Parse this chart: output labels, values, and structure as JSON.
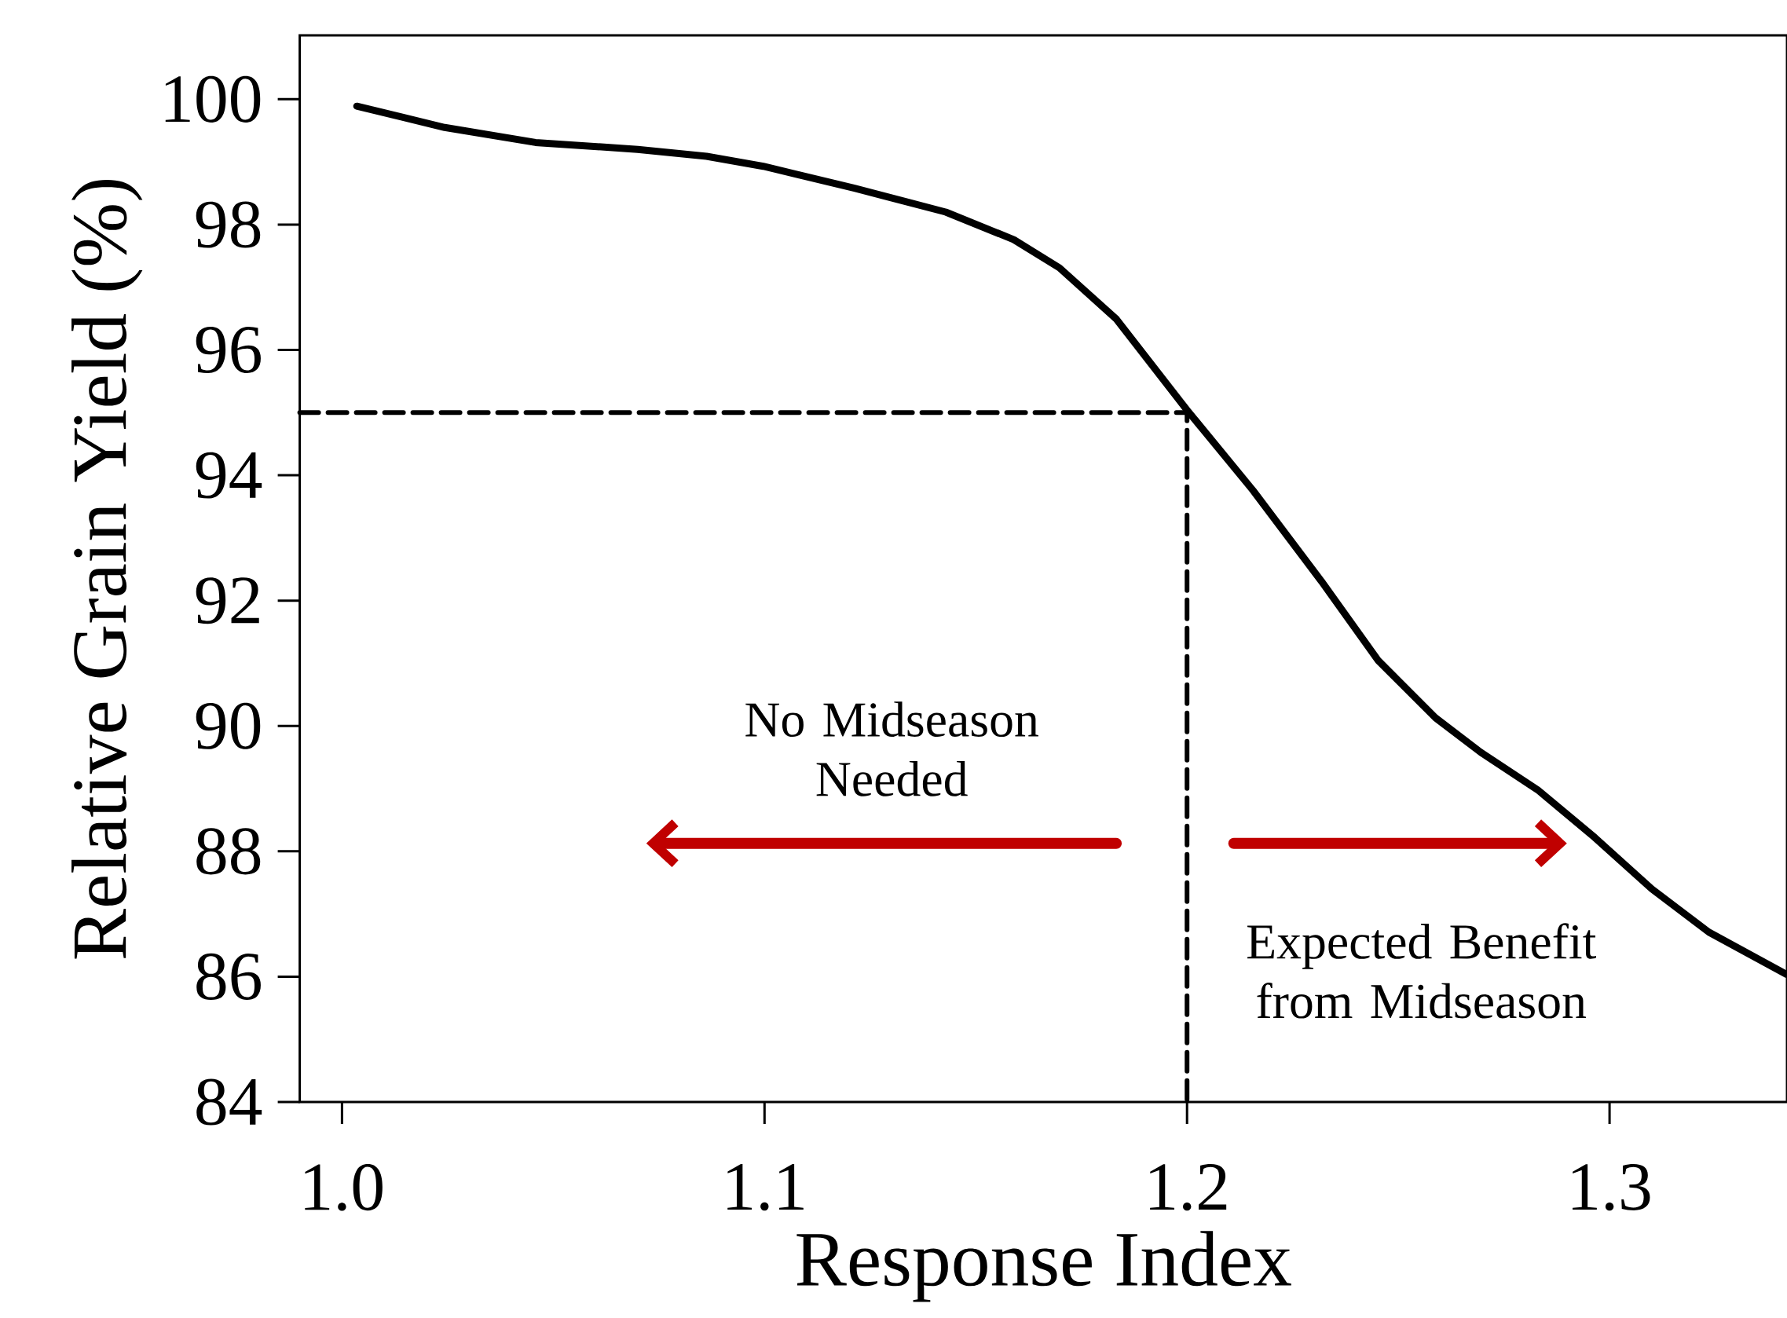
{
  "chart_data": {
    "type": "line",
    "xlabel": "Response Index",
    "ylabel": "Relative Grain Yield (%)",
    "xlim": [
      0.99,
      1.342
    ],
    "ylim": [
      84,
      101.02
    ],
    "xticks": [
      {
        "value": 1.0,
        "label": "1.0"
      },
      1.1,
      1.2,
      1.3
    ],
    "yticks": [
      84,
      86,
      88,
      90,
      92,
      94,
      96,
      98,
      100
    ],
    "series": [
      {
        "color": "#000000",
        "line_style": "solid",
        "x": [
          1.0035,
          1.0243,
          1.0458,
          1.07,
          1.0863,
          1.0997,
          1.1213,
          1.1429,
          1.159,
          1.1698,
          1.1833,
          1.2,
          1.2156,
          1.2318,
          1.2453,
          1.2588,
          1.2695,
          1.283,
          1.2965,
          1.31,
          1.3235,
          1.3418
        ],
        "values": [
          99.89,
          99.55,
          99.31,
          99.2,
          99.09,
          98.93,
          98.58,
          98.2,
          97.76,
          97.31,
          96.49,
          95.04,
          93.76,
          92.31,
          91.04,
          90.13,
          89.58,
          88.98,
          88.22,
          87.4,
          86.71,
          86.04
        ]
      },
      {
        "color": "#000000",
        "line_style": "dashed",
        "x": [
          0.99,
          1.2,
          1.2
        ],
        "values": [
          95,
          95,
          84
        ]
      }
    ],
    "annotations": [
      "No Midseason Needed",
      "Expected Benefit from Midseason"
    ]
  }
}
